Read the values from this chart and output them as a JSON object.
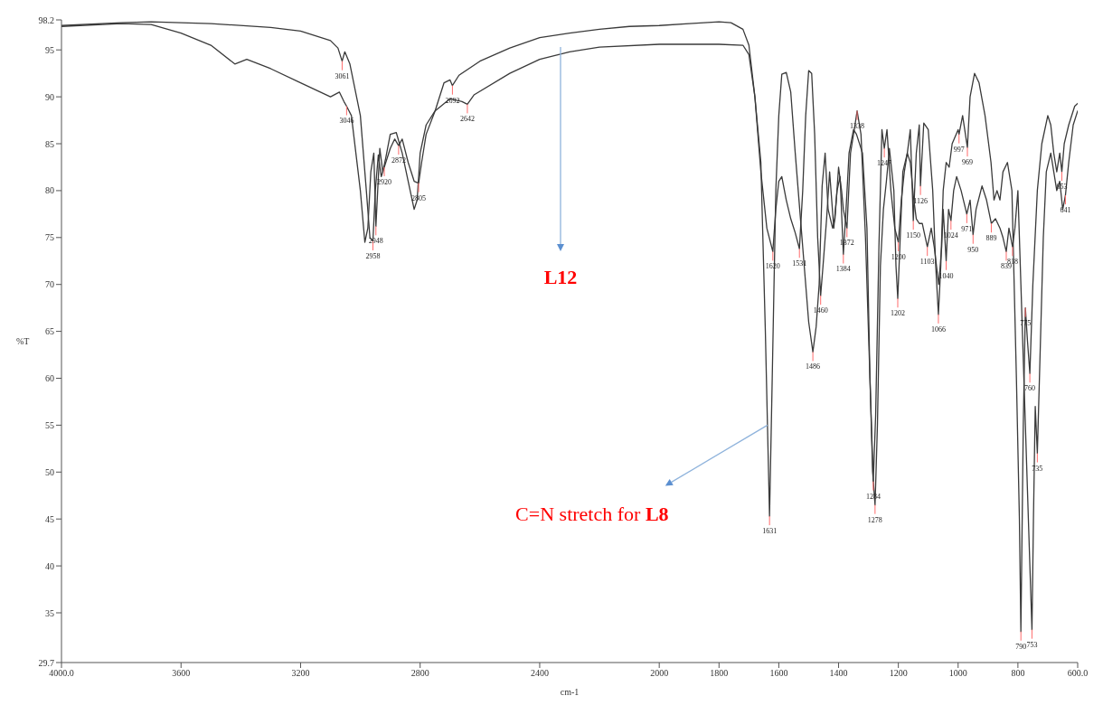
{
  "chart_data": {
    "type": "line",
    "xlabel": "cm-1",
    "ylabel": "%T",
    "xlim": [
      4000,
      600
    ],
    "ylim": [
      29.7,
      98.2
    ],
    "xticks": [
      {
        "value": 4000,
        "label": "4000.0"
      },
      3600,
      3200,
      2800,
      2400,
      2000,
      1800,
      1600,
      1400,
      1200,
      1000,
      800,
      {
        "value": 600,
        "label": "600.0"
      }
    ],
    "yticks": [
      29.7,
      35,
      40,
      45,
      50,
      55,
      60,
      65,
      70,
      75,
      80,
      85,
      90,
      95,
      98.2
    ],
    "grid": false,
    "legend": false,
    "marker": "none",
    "line_style": "solid",
    "series": [
      {
        "color": "#3a3a3a",
        "x": [
          4000,
          3800,
          3700,
          3500,
          3300,
          3200,
          3100,
          3075,
          3061,
          3052,
          3035,
          3000,
          2980,
          2968,
          2958,
          2950,
          2940,
          2930,
          2920,
          2900,
          2885,
          2872,
          2860,
          2840,
          2820,
          2805,
          2795,
          2780,
          2750,
          2720,
          2700,
          2692,
          2670,
          2600,
          2500,
          2400,
          2300,
          2200,
          2100,
          2000,
          1900,
          1800,
          1760,
          1720,
          1700,
          1680,
          1660,
          1645,
          1631,
          1622,
          1610,
          1600,
          1590,
          1575,
          1560,
          1545,
          1530,
          1515,
          1500,
          1486,
          1475,
          1465,
          1455,
          1445,
          1435,
          1420,
          1412,
          1400,
          1390,
          1384,
          1372,
          1360,
          1345,
          1338,
          1325,
          1310,
          1295,
          1286,
          1278,
          1270,
          1260,
          1250,
          1240,
          1230,
          1215,
          1208,
          1202,
          1195,
          1185,
          1170,
          1160,
          1150,
          1140,
          1130,
          1126,
          1115,
          1100,
          1085,
          1075,
          1066,
          1058,
          1050,
          1040,
          1030,
          1020,
          1000,
          997,
          985,
          969,
          960,
          945,
          930,
          910,
          890,
          880,
          870,
          860,
          850,
          835,
          820,
          805,
          795,
          790,
          782,
          775,
          768,
          760,
          750,
          735,
          720,
          700,
          690,
          680,
          670,
          660,
          653,
          645,
          630,
          610,
          600
        ],
        "values": [
          97.6,
          97.9,
          98.0,
          97.8,
          97.4,
          97.0,
          96.0,
          95.2,
          93.8,
          94.8,
          93.5,
          88,
          80,
          75,
          74.6,
          80,
          83.8,
          81.5,
          82.5,
          84.5,
          85.5,
          84.8,
          85.5,
          83,
          81,
          80.8,
          83,
          86,
          88.5,
          91.5,
          91.8,
          91.2,
          92.3,
          93.8,
          95.2,
          96.3,
          96.8,
          97.2,
          97.5,
          97.6,
          97.8,
          98.0,
          97.9,
          97.2,
          95.5,
          90,
          83,
          65,
          45.3,
          60,
          80,
          88,
          92.4,
          92.6,
          90.5,
          84,
          78,
          72,
          66,
          62.8,
          65.5,
          70,
          80.5,
          84,
          78,
          76,
          77,
          82.5,
          80,
          78,
          76,
          84,
          87,
          88.5,
          86,
          75,
          60,
          50,
          46.5,
          55,
          72,
          78,
          81,
          84.5,
          80,
          72,
          68.5,
          74,
          82,
          84,
          86.5,
          76.8,
          84,
          87,
          80.5,
          87.2,
          86.5,
          80,
          72,
          66.8,
          72,
          80,
          83,
          82.5,
          85,
          86.5,
          86,
          88,
          84.6,
          90,
          92.5,
          91.5,
          88,
          83,
          79,
          80,
          79,
          82,
          83,
          80,
          60,
          45,
          33,
          55,
          67.5,
          64,
          60.5,
          70,
          80,
          85,
          88,
          87,
          84,
          82,
          84,
          82,
          85,
          87,
          89,
          89.3
        ]
      },
      {
        "color": "#3a3a3a",
        "x": [
          4000,
          3800,
          3700,
          3600,
          3500,
          3420,
          3380,
          3300,
          3200,
          3100,
          3070,
          3055,
          3046,
          3030,
          3000,
          2985,
          2975,
          2965,
          2955,
          2948,
          2935,
          2925,
          2915,
          2900,
          2880,
          2860,
          2840,
          2820,
          2810,
          2800,
          2780,
          2750,
          2700,
          2660,
          2642,
          2620,
          2500,
          2400,
          2300,
          2200,
          2000,
          1800,
          1720,
          1700,
          1680,
          1660,
          1640,
          1620,
          1610,
          1600,
          1590,
          1575,
          1560,
          1545,
          1531,
          1520,
          1510,
          1500,
          1490,
          1480,
          1470,
          1460,
          1452,
          1440,
          1430,
          1416,
          1405,
          1395,
          1384,
          1375,
          1365,
          1350,
          1340,
          1320,
          1305,
          1295,
          1284,
          1276,
          1265,
          1255,
          1247,
          1238,
          1225,
          1212,
          1200,
          1190,
          1180,
          1170,
          1160,
          1150,
          1140,
          1130,
          1120,
          1103,
          1090,
          1080,
          1065,
          1055,
          1050,
          1040,
          1032,
          1024,
          1015,
          1005,
          990,
          971,
          960,
          950,
          940,
          920,
          905,
          889,
          875,
          860,
          850,
          839,
          830,
          818,
          810,
          800,
          790,
          775,
          765,
          753,
          748,
          742,
          735,
          728,
          715,
          705,
          690,
          680,
          670,
          660,
          650,
          641,
          630,
          615,
          600
        ],
        "values": [
          97.5,
          97.8,
          97.7,
          96.8,
          95.5,
          93.5,
          94,
          93,
          91.5,
          90,
          90.5,
          89.5,
          89,
          88,
          80,
          74.5,
          76,
          82,
          84,
          76.2,
          84.5,
          82,
          83.5,
          86,
          86.2,
          84,
          81,
          78,
          79,
          84,
          87,
          88.5,
          89.8,
          89.5,
          89.2,
          90.2,
          92.5,
          94,
          94.8,
          95.3,
          95.6,
          95.6,
          95.5,
          94.5,
          90,
          82,
          76,
          73.5,
          78,
          81,
          81.5,
          79,
          77,
          75.5,
          73.8,
          80,
          88,
          92.8,
          92.5,
          86,
          75,
          68.8,
          72,
          77,
          82,
          76,
          80,
          81.5,
          73.2,
          78,
          84,
          86.5,
          86,
          84,
          76,
          60,
          49,
          56,
          74,
          86.5,
          84.5,
          86.5,
          80,
          76,
          74.5,
          79,
          82,
          84,
          83,
          79.5,
          77,
          76.5,
          76.5,
          74,
          76,
          74,
          70,
          74,
          78,
          72.5,
          78,
          76.8,
          80,
          81.5,
          80,
          77.5,
          79,
          75.3,
          78,
          80.5,
          79,
          76.5,
          77,
          76,
          75,
          73.5,
          76,
          74,
          76,
          80,
          70,
          55,
          45,
          33.2,
          45,
          57,
          52,
          60,
          75,
          82,
          84,
          82,
          80,
          81,
          78,
          79.5,
          83,
          87,
          88.5
        ]
      }
    ],
    "annotations": [
      "L12",
      {
        "text": "C=N stretch for L8",
        "x": 1638,
        "y": 55
      },
      {
        "text": "3061",
        "x": 3061,
        "y": 93.8
      },
      {
        "text": "3046",
        "x": 3046,
        "y": 89
      },
      {
        "text": "2958",
        "x": 2958,
        "y": 74.6
      },
      {
        "text": "2948",
        "x": 2948,
        "y": 76.2
      },
      {
        "text": "2920",
        "x": 2920,
        "y": 82.5
      },
      {
        "text": "2872",
        "x": 2872,
        "y": 84.8
      },
      {
        "text": "2805",
        "x": 2805,
        "y": 80.8
      },
      {
        "text": "2692",
        "x": 2692,
        "y": 91.2
      },
      {
        "text": "2642",
        "x": 2642,
        "y": 89.2
      },
      {
        "text": "1631",
        "x": 1631,
        "y": 45.3
      },
      {
        "text": "1620",
        "x": 1620,
        "y": 73.5
      },
      {
        "text": "1531",
        "x": 1531,
        "y": 73.8
      },
      {
        "text": "1486",
        "x": 1486,
        "y": 62.8
      },
      {
        "text": "1460",
        "x": 1460,
        "y": 68.8
      },
      {
        "text": "1384",
        "x": 1384,
        "y": 73.2
      },
      {
        "text": "1372",
        "x": 1372,
        "y": 76
      },
      {
        "text": "1338",
        "x": 1338,
        "y": 88.5
      },
      {
        "text": "1284",
        "x": 1284,
        "y": 49
      },
      {
        "text": "1278",
        "x": 1278,
        "y": 46.5
      },
      {
        "text": "1247",
        "x": 1247,
        "y": 84.5
      },
      {
        "text": "1202",
        "x": 1202,
        "y": 68.5
      },
      {
        "text": "1200",
        "x": 1200,
        "y": 74.5
      },
      {
        "text": "1150",
        "x": 1150,
        "y": 76.8
      },
      {
        "text": "1126",
        "x": 1126,
        "y": 80.5
      },
      {
        "text": "1103",
        "x": 1103,
        "y": 74
      },
      {
        "text": "1066",
        "x": 1066,
        "y": 66.8
      },
      {
        "text": "1040",
        "x": 1040,
        "y": 72.5
      },
      {
        "text": "1024",
        "x": 1024,
        "y": 76.8
      },
      {
        "text": "997",
        "x": 997,
        "y": 86
      },
      {
        "text": "971",
        "x": 971,
        "y": 77.5
      },
      {
        "text": "969",
        "x": 969,
        "y": 84.6
      },
      {
        "text": "950",
        "x": 950,
        "y": 75.3
      },
      {
        "text": "889",
        "x": 889,
        "y": 76.5
      },
      {
        "text": "839",
        "x": 839,
        "y": 73.5
      },
      {
        "text": "818",
        "x": 818,
        "y": 74
      },
      {
        "text": "790",
        "x": 790,
        "y": 33
      },
      {
        "text": "775",
        "x": 775,
        "y": 67.5
      },
      {
        "text": "760",
        "x": 760,
        "y": 60.5
      },
      {
        "text": "753",
        "x": 753,
        "y": 33.2
      },
      {
        "text": "735",
        "x": 735,
        "y": 52
      },
      {
        "text": "653",
        "x": 653,
        "y": 82
      },
      {
        "text": "641",
        "x": 641,
        "y": 79.5
      }
    ]
  }
}
